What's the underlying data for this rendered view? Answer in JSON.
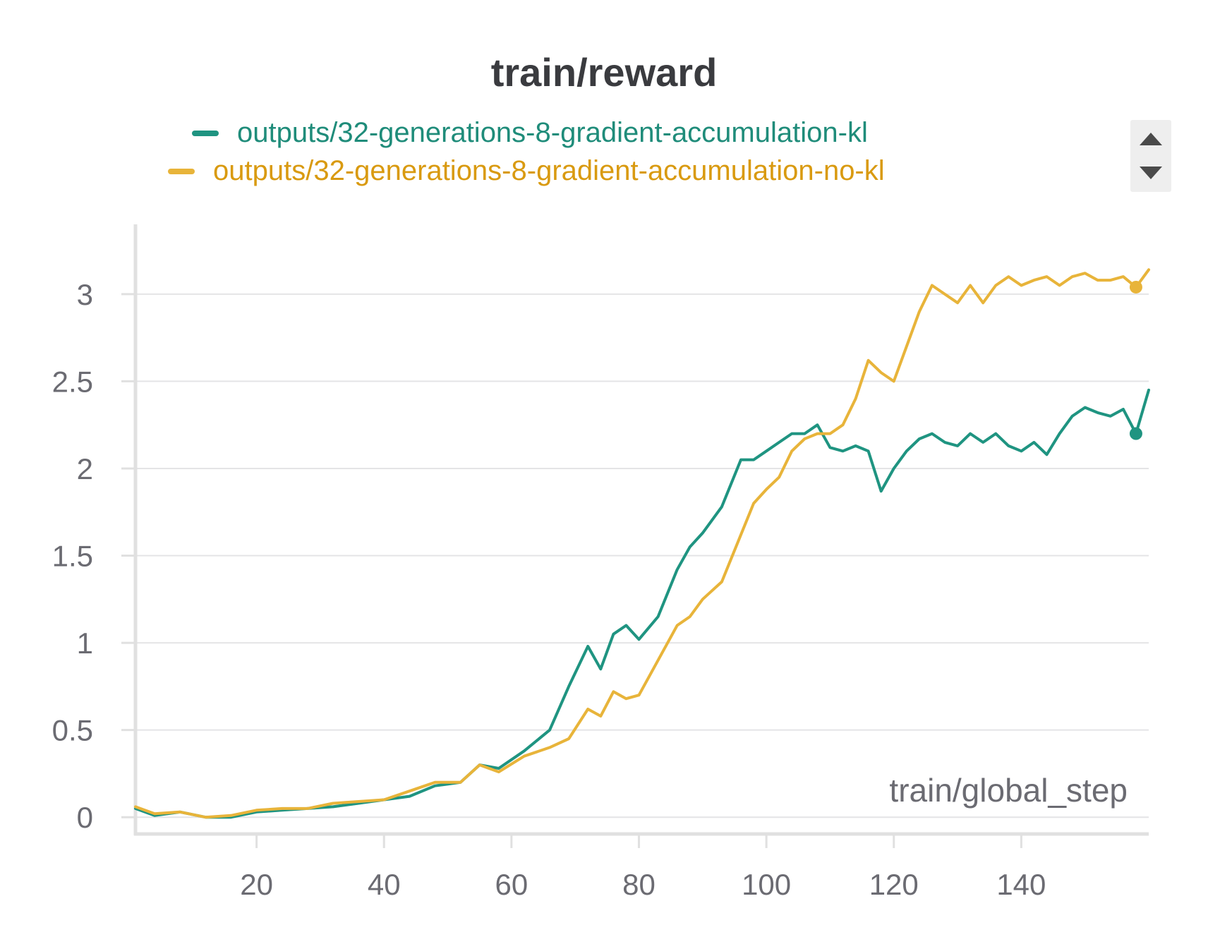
{
  "chart_data": {
    "type": "line",
    "title": "train/reward",
    "xlabel": "train/global_step",
    "ylabel": "",
    "xlim": [
      1,
      160
    ],
    "ylim": [
      -0.08,
      3.4
    ],
    "x_ticks": [
      "20",
      "40",
      "60",
      "80",
      "100",
      "120",
      "140"
    ],
    "x_tick_values": [
      20,
      40,
      60,
      80,
      100,
      120,
      140
    ],
    "y_ticks": [
      "0",
      "0.5",
      "1",
      "1.5",
      "2",
      "2.5",
      "3"
    ],
    "y_tick_values": [
      0,
      0.5,
      1,
      1.5,
      2,
      2.5,
      3
    ],
    "grid": "horizontal",
    "legend_position": "top-center",
    "series": [
      {
        "name": "outputs/32-generations-8-gradient-accumulation-kl",
        "color": "#1f9481",
        "x": [
          1,
          4,
          8,
          12,
          16,
          20,
          24,
          28,
          32,
          36,
          40,
          44,
          48,
          52,
          55,
          58,
          62,
          66,
          69,
          72,
          74,
          76,
          78,
          80,
          83,
          86,
          88,
          90,
          93,
          96,
          98,
          100,
          102,
          104,
          106,
          108,
          110,
          112,
          114,
          116,
          118,
          120,
          122,
          124,
          126,
          128,
          130,
          132,
          134,
          136,
          138,
          140,
          142,
          144,
          146,
          148,
          150,
          152,
          154,
          156,
          158,
          160
        ],
        "values": [
          0.05,
          0.01,
          0.03,
          0.0,
          0.0,
          0.03,
          0.04,
          0.05,
          0.06,
          0.08,
          0.1,
          0.12,
          0.18,
          0.2,
          0.3,
          0.28,
          0.38,
          0.5,
          0.75,
          0.98,
          0.85,
          1.05,
          1.1,
          1.02,
          1.15,
          1.42,
          1.55,
          1.63,
          1.78,
          2.05,
          2.05,
          2.1,
          2.15,
          2.2,
          2.2,
          2.25,
          2.12,
          2.1,
          2.13,
          2.1,
          1.87,
          2.0,
          2.1,
          2.17,
          2.2,
          2.15,
          2.13,
          2.2,
          2.15,
          2.2,
          2.13,
          2.1,
          2.15,
          2.08,
          2.2,
          2.3,
          2.35,
          2.32,
          2.3,
          2.34,
          2.2,
          2.45
        ]
      },
      {
        "name": "outputs/32-generations-8-gradient-accumulation-no-kl",
        "color": "#e8b43a",
        "x": [
          1,
          4,
          8,
          12,
          16,
          20,
          24,
          28,
          32,
          36,
          40,
          44,
          48,
          52,
          55,
          58,
          62,
          66,
          69,
          72,
          74,
          76,
          78,
          80,
          83,
          86,
          88,
          90,
          93,
          96,
          98,
          100,
          102,
          104,
          106,
          108,
          110,
          112,
          114,
          116,
          118,
          120,
          122,
          124,
          126,
          128,
          130,
          132,
          134,
          136,
          138,
          140,
          142,
          144,
          146,
          148,
          150,
          152,
          154,
          156,
          158,
          160
        ],
        "values": [
          0.06,
          0.02,
          0.03,
          0.0,
          0.01,
          0.04,
          0.05,
          0.05,
          0.08,
          0.09,
          0.1,
          0.15,
          0.2,
          0.2,
          0.3,
          0.26,
          0.35,
          0.4,
          0.45,
          0.62,
          0.58,
          0.72,
          0.68,
          0.7,
          0.9,
          1.1,
          1.15,
          1.25,
          1.35,
          1.62,
          1.8,
          1.88,
          1.95,
          2.1,
          2.17,
          2.2,
          2.2,
          2.25,
          2.4,
          2.62,
          2.55,
          2.5,
          2.7,
          2.9,
          3.05,
          3.0,
          2.95,
          3.05,
          2.95,
          3.05,
          3.1,
          3.05,
          3.08,
          3.1,
          3.05,
          3.1,
          3.12,
          3.08,
          3.08,
          3.1,
          3.04,
          3.14
        ]
      }
    ]
  }
}
